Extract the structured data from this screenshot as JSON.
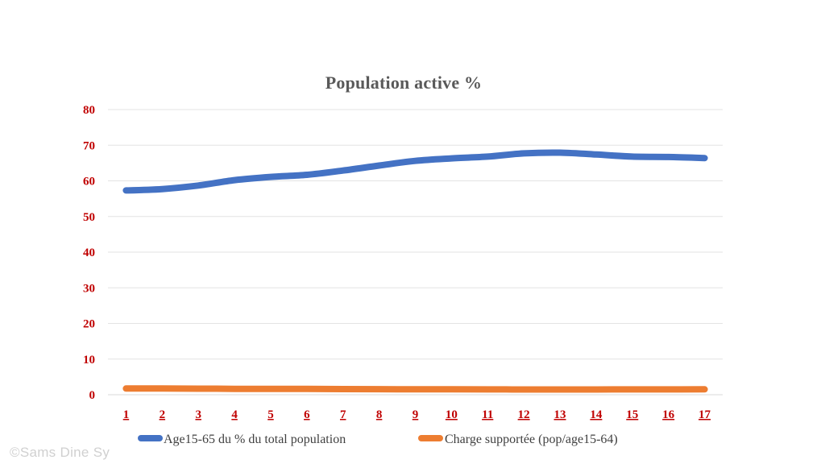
{
  "watermark": "©Sams Dine Sy",
  "chart_data": {
    "type": "line",
    "title": "Population active  %",
    "xlabel": "",
    "ylabel": "",
    "categories": [
      "1",
      "2",
      "3",
      "4",
      "5",
      "6",
      "7",
      "8",
      "9",
      "10",
      "11",
      "12",
      "13",
      "14",
      "15",
      "16",
      "17"
    ],
    "ylim": [
      0,
      80
    ],
    "yticks": [
      0,
      10,
      20,
      30,
      40,
      50,
      60,
      70,
      80
    ],
    "grid": true,
    "legend": "bottom",
    "tick_color": "#c00000",
    "series": [
      {
        "name": "Age15-65 du  % du total population",
        "color": "#4472c4",
        "values": [
          57.3,
          57.7,
          58.7,
          60.2,
          61.1,
          61.7,
          62.9,
          64.3,
          65.6,
          66.3,
          66.8,
          67.7,
          67.9,
          67.4,
          66.8,
          66.7,
          66.4
        ]
      },
      {
        "name": "Charge supportée (pop/age15-64)",
        "color": "#ed7d31",
        "values": [
          1.75,
          1.73,
          1.7,
          1.66,
          1.64,
          1.62,
          1.59,
          1.55,
          1.52,
          1.51,
          1.5,
          1.48,
          1.47,
          1.48,
          1.5,
          1.5,
          1.51
        ]
      }
    ]
  }
}
